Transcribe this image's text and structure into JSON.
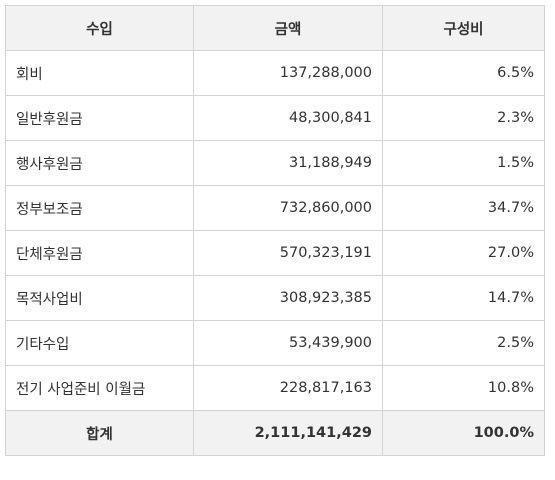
{
  "table": {
    "headers": [
      "수입",
      "금액",
      "구성비"
    ],
    "rows": [
      {
        "label": "회비",
        "amount": "137,288,000",
        "ratio": "6.5%"
      },
      {
        "label": "일반후원금",
        "amount": "48,300,841",
        "ratio": "2.3%"
      },
      {
        "label": "행사후원금",
        "amount": "31,188,949",
        "ratio": "1.5%"
      },
      {
        "label": "정부보조금",
        "amount": "732,860,000",
        "ratio": "34.7%"
      },
      {
        "label": "단체후원금",
        "amount": "570,323,191",
        "ratio": "27.0%"
      },
      {
        "label": "목적사업비",
        "amount": "308,923,385",
        "ratio": "14.7%"
      },
      {
        "label": "기타수입",
        "amount": "53,439,900",
        "ratio": "2.5%"
      },
      {
        "label": "전기 사업준비 이월금",
        "amount": "228,817,163",
        "ratio": "10.8%"
      }
    ],
    "total": {
      "label": "합계",
      "amount": "2,111,141,429",
      "ratio": "100.0%"
    }
  }
}
